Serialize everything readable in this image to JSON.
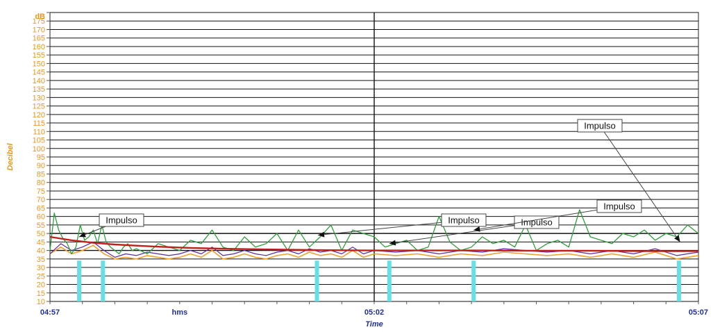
{
  "chart_data": {
    "type": "line",
    "title": "",
    "ylabel": "Decibel",
    "y_unit": "dB",
    "xlabel": "Time",
    "x_unit": "hms",
    "x_tick_labels": [
      {
        "t": 0,
        "label": "04:57"
      },
      {
        "t": 300,
        "label": "05:02"
      },
      {
        "t": 600,
        "label": "05:07"
      }
    ],
    "x_range_seconds": [
      0,
      600
    ],
    "ylim": [
      10,
      180
    ],
    "y_tick_step": 5,
    "grid": true,
    "colors": {
      "series_green": "#2E9E3A",
      "series_purple": "#5A2AA0",
      "series_orange": "#F0A030",
      "trend_red": "#C0201A",
      "impulse_cyan": "#66E0E8",
      "ytick": "#E8961E",
      "xtick": "#1F2F9C"
    },
    "series": [
      {
        "color": "green",
        "x_seconds": [
          0,
          4,
          8,
          12,
          16,
          20,
          24,
          28,
          32,
          36,
          40,
          44,
          48,
          52,
          56,
          60,
          64,
          68,
          72,
          76,
          80,
          90,
          100,
          110,
          120,
          130,
          140,
          150,
          160,
          170,
          180,
          190,
          200,
          210,
          220,
          230,
          240,
          250,
          260,
          270,
          280,
          290,
          300,
          310,
          320,
          330,
          340,
          350,
          360,
          370,
          380,
          390,
          400,
          410,
          420,
          430,
          440,
          450,
          460,
          470,
          480,
          490,
          500,
          510,
          520,
          530,
          540,
          550,
          560,
          570,
          580,
          590,
          600
        ],
        "y": [
          40,
          62,
          52,
          47,
          44,
          38,
          42,
          55,
          46,
          48,
          52,
          44,
          55,
          45,
          42,
          40,
          38,
          42,
          44,
          40,
          41,
          38,
          44,
          42,
          40,
          46,
          44,
          52,
          42,
          40,
          48,
          42,
          44,
          50,
          40,
          52,
          42,
          48,
          55,
          40,
          52,
          50,
          48,
          42,
          44,
          46,
          40,
          42,
          60,
          45,
          40,
          42,
          48,
          44,
          46,
          42,
          55,
          40,
          44,
          46,
          42,
          64,
          48,
          46,
          44,
          50,
          48,
          52,
          46,
          50,
          48,
          55,
          50
        ]
      },
      {
        "color": "purple",
        "x_seconds": [
          0,
          10,
          20,
          30,
          40,
          50,
          60,
          70,
          80,
          90,
          100,
          110,
          120,
          130,
          140,
          150,
          160,
          170,
          180,
          190,
          200,
          210,
          220,
          230,
          240,
          250,
          260,
          270,
          280,
          290,
          300,
          320,
          340,
          360,
          380,
          400,
          420,
          440,
          460,
          480,
          500,
          520,
          540,
          560,
          580,
          600
        ],
        "y": [
          38,
          44,
          40,
          42,
          45,
          40,
          36,
          38,
          37,
          39,
          38,
          37,
          38,
          40,
          38,
          42,
          37,
          38,
          40,
          38,
          37,
          39,
          40,
          38,
          41,
          39,
          40,
          38,
          42,
          38,
          40,
          39,
          40,
          38,
          40,
          39,
          41,
          40,
          39,
          40,
          38,
          40,
          38,
          41,
          37,
          39
        ]
      },
      {
        "color": "orange",
        "x_seconds": [
          0,
          10,
          20,
          30,
          40,
          50,
          60,
          70,
          80,
          90,
          100,
          110,
          120,
          130,
          140,
          150,
          160,
          170,
          180,
          190,
          200,
          210,
          220,
          230,
          240,
          250,
          260,
          270,
          280,
          290,
          300,
          320,
          340,
          360,
          380,
          400,
          420,
          440,
          460,
          480,
          500,
          520,
          540,
          560,
          580,
          600
        ],
        "y": [
          38,
          42,
          38,
          40,
          43,
          38,
          35,
          36,
          35,
          37,
          36,
          35,
          36,
          38,
          36,
          40,
          35,
          36,
          38,
          36,
          35,
          37,
          38,
          36,
          39,
          37,
          38,
          36,
          40,
          36,
          38,
          37,
          38,
          36,
          38,
          37,
          39,
          38,
          37,
          38,
          36,
          38,
          36,
          39,
          35,
          37
        ]
      },
      {
        "color": "red",
        "x_seconds": [
          0,
          10,
          20,
          40,
          60,
          80,
          100,
          130,
          160,
          200,
          250,
          300,
          350,
          400,
          450,
          500,
          550,
          600
        ],
        "y": [
          48,
          47,
          46,
          44.5,
          43.5,
          42.8,
          42.2,
          41.5,
          41,
          40.6,
          40.2,
          40,
          40,
          40,
          39.8,
          39.8,
          39.6,
          39.6
        ]
      }
    ],
    "impulse_markers_seconds": [
      27,
      49,
      247,
      314,
      392,
      582
    ],
    "annotations": [
      {
        "text": "Impulso",
        "x_seconds": 27,
        "y_db": 48
      },
      {
        "text": "Impulso",
        "x_seconds": 248,
        "y_db": 49
      },
      {
        "text": "Impulso",
        "x_seconds": 314,
        "y_db": 44
      },
      {
        "text": "Impulso",
        "x_seconds": 392,
        "y_db": 52
      },
      {
        "text": "Impulso",
        "x_seconds": 583,
        "y_db": 45
      }
    ]
  }
}
